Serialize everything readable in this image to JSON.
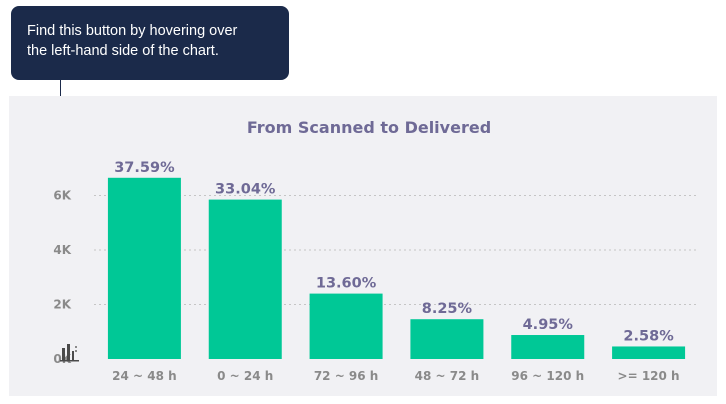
{
  "tooltip": {
    "text_line1": "Find this button by hovering over",
    "text_line2": "the left-hand side of the chart."
  },
  "colors": {
    "bar": "#00c896",
    "tooltip_bg": "#1b2a4a",
    "panel_bg": "#f1f1f4",
    "title": "#6f6a96"
  },
  "chart_data": {
    "type": "bar",
    "title": "From Scanned to Delivered",
    "categories": [
      "24 ~ 48 h",
      "0 ~ 24 h",
      "72 ~ 96 h",
      "48 ~ 72 h",
      "96 ~ 120 h",
      ">= 120 h"
    ],
    "values": [
      6650,
      5850,
      2400,
      1460,
      880,
      460
    ],
    "data_labels": [
      "37.59%",
      "33.04%",
      "13.60%",
      "8.25%",
      "4.95%",
      "2.58%"
    ],
    "yticks": [
      0,
      2000,
      4000,
      6000
    ],
    "ytick_labels": [
      "0K",
      "2K",
      "4K",
      "6K"
    ],
    "ylim": [
      0,
      8000
    ],
    "grid": true,
    "legend": "none"
  },
  "chart_menu": {
    "icon": "bar-chart-icon"
  }
}
